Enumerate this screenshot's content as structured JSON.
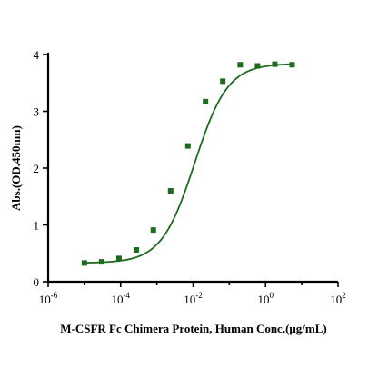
{
  "chart_data": {
    "type": "scatter",
    "title": "",
    "xlabel": "M-CSFR Fc Chimera Protein, Human Conc.(μg/mL)",
    "ylabel": "Abs.(OD.450nm)",
    "x_scale": "log10",
    "xlim": [
      1e-06,
      100
    ],
    "ylim": [
      0,
      4
    ],
    "x_ticks": [
      {
        "value": 1e-06,
        "base": "10",
        "exp": "-6"
      },
      {
        "value": 0.0001,
        "base": "10",
        "exp": "-4"
      },
      {
        "value": 0.01,
        "base": "10",
        "exp": "-2"
      },
      {
        "value": 1,
        "base": "10",
        "exp": "0"
      },
      {
        "value": 100,
        "base": "10",
        "exp": "2"
      }
    ],
    "y_ticks": [
      0,
      1,
      2,
      3,
      4
    ],
    "grid": false,
    "legend": "none",
    "series": [
      {
        "color": "#1e6b1e",
        "marker": "square",
        "fit": "4PL",
        "x": [
          1e-05,
          3e-05,
          9e-05,
          0.00027,
          0.0008,
          0.0024,
          0.0072,
          0.022,
          0.066,
          0.2,
          0.6,
          1.8,
          5.4
        ],
        "y": [
          0.33,
          0.35,
          0.41,
          0.56,
          0.91,
          1.6,
          2.39,
          3.17,
          3.53,
          3.82,
          3.8,
          3.83,
          3.82
        ]
      }
    ]
  }
}
